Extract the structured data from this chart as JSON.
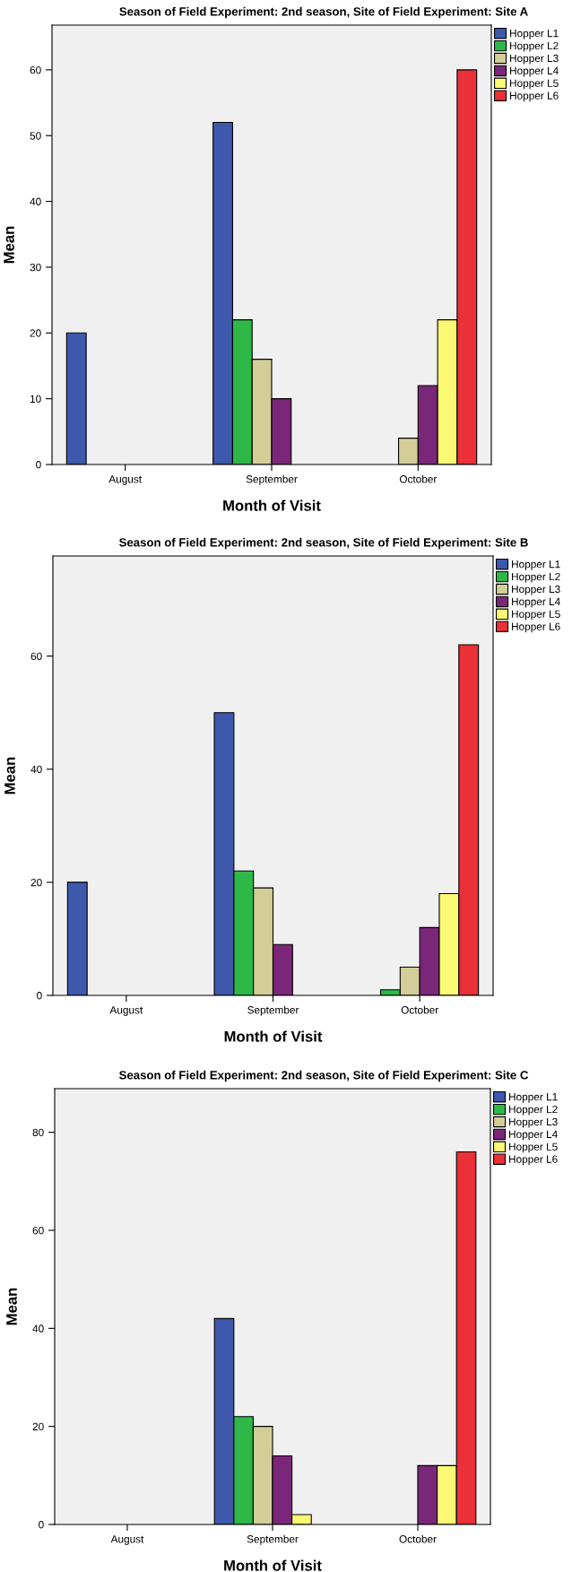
{
  "chart_data": [
    {
      "type": "bar",
      "title": "Season of Field Experiment: 2nd season, Site of Field Experiment: Site A",
      "xlabel": "Month of Visit",
      "ylabel": "Mean",
      "categories": [
        "August",
        "September",
        "October"
      ],
      "ylim": [
        0,
        66.8
      ],
      "yticks": [
        0,
        10,
        20,
        30,
        40,
        50,
        60
      ],
      "legend": "top right",
      "series": [
        {
          "name": "Hopper L1",
          "color": "#3e58ac",
          "values": [
            20,
            52,
            null
          ]
        },
        {
          "name": "Hopper L2",
          "color": "#2eb848",
          "values": [
            null,
            22,
            null
          ]
        },
        {
          "name": "Hopper L3",
          "color": "#d3ce97",
          "values": [
            null,
            16,
            4
          ]
        },
        {
          "name": "Hopper L4",
          "color": "#7b2779",
          "values": [
            null,
            10,
            12
          ]
        },
        {
          "name": "Hopper L5",
          "color": "#fbf873",
          "values": [
            null,
            null,
            22
          ]
        },
        {
          "name": "Hopper L6",
          "color": "#ea3137",
          "values": [
            null,
            null,
            60
          ]
        }
      ]
    },
    {
      "type": "bar",
      "title": "Season of Field Experiment: 2nd season, Site of Field Experiment: Site B",
      "xlabel": "Month of Visit",
      "ylabel": "Mean",
      "categories": [
        "August",
        "September",
        "October"
      ],
      "ylim": [
        0,
        77.7
      ],
      "yticks": [
        0,
        20,
        40,
        60
      ],
      "legend": "top right",
      "series": [
        {
          "name": "Hopper L1",
          "color": "#3e58ac",
          "values": [
            20,
            50,
            null
          ]
        },
        {
          "name": "Hopper L2",
          "color": "#2eb848",
          "values": [
            null,
            22,
            1
          ]
        },
        {
          "name": "Hopper L3",
          "color": "#d3ce97",
          "values": [
            null,
            19,
            5
          ]
        },
        {
          "name": "Hopper L4",
          "color": "#7b2779",
          "values": [
            null,
            9,
            12
          ]
        },
        {
          "name": "Hopper L5",
          "color": "#fbf873",
          "values": [
            null,
            null,
            18
          ]
        },
        {
          "name": "Hopper L6",
          "color": "#ea3137",
          "values": [
            null,
            null,
            62
          ]
        }
      ]
    },
    {
      "type": "bar",
      "title": "Season of Field Experiment: 2nd season, Site of Field Experiment: Site C",
      "xlabel": "Month of Visit",
      "ylabel": "Mean",
      "categories": [
        "August",
        "September",
        "October"
      ],
      "ylim": [
        0,
        88.9
      ],
      "yticks": [
        0,
        20,
        40,
        60,
        80
      ],
      "legend": "top right",
      "series": [
        {
          "name": "Hopper L1",
          "color": "#3e58ac",
          "values": [
            null,
            42,
            null
          ]
        },
        {
          "name": "Hopper L2",
          "color": "#2eb848",
          "values": [
            null,
            22,
            null
          ]
        },
        {
          "name": "Hopper L3",
          "color": "#d3ce97",
          "values": [
            null,
            20,
            null
          ]
        },
        {
          "name": "Hopper L4",
          "color": "#7b2779",
          "values": [
            null,
            14,
            12
          ]
        },
        {
          "name": "Hopper L5",
          "color": "#fbf873",
          "values": [
            null,
            2,
            12
          ]
        },
        {
          "name": "Hopper L6",
          "color": "#ea3137",
          "values": [
            null,
            null,
            76
          ]
        }
      ]
    }
  ]
}
